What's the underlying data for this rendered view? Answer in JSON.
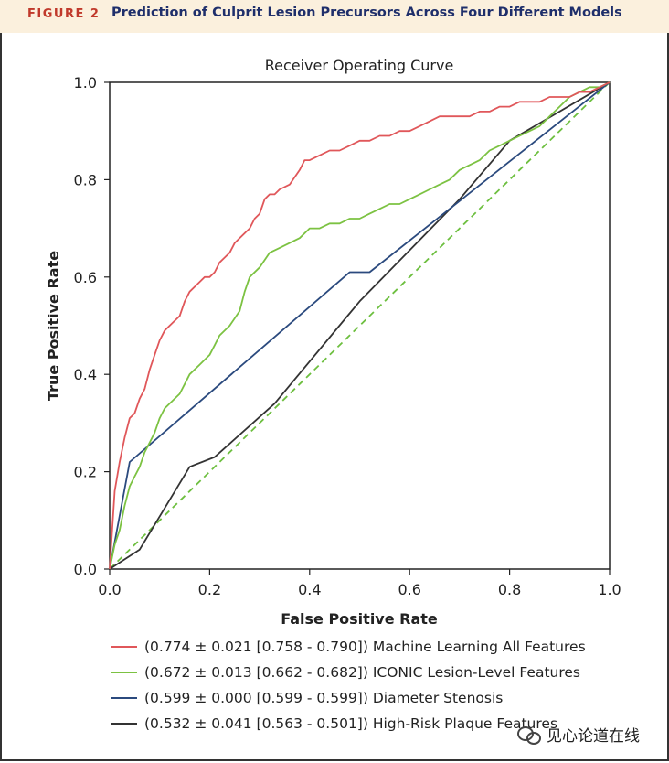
{
  "figure": {
    "label": "FIGURE 2",
    "title": "Prediction of Culprit Lesion Precursors Across Four Different Models",
    "label_color": "#c0392b",
    "title_color": "#1f2f6b"
  },
  "watermark": {
    "text": "见心论道在线",
    "icon": "wechat-icon"
  },
  "chart_data": {
    "type": "line",
    "title": "Receiver Operating Curve",
    "xlabel": "False Positive Rate",
    "ylabel": "True Positive Rate",
    "xlim": [
      0,
      1
    ],
    "ylim": [
      0,
      1
    ],
    "xticks": [
      "0.0",
      "0.2",
      "0.4",
      "0.6",
      "0.8",
      "1.0"
    ],
    "yticks": [
      "0.0",
      "0.2",
      "0.4",
      "0.6",
      "0.8",
      "1.0"
    ],
    "grid": false,
    "legend_position": "bottom",
    "reference_line": {
      "x": [
        0,
        1
      ],
      "y": [
        0,
        1
      ],
      "color": "#6dbf3f",
      "style": "dashed"
    },
    "series": [
      {
        "name": "(0.774 ± 0.021 [0.758 - 0.790]) Machine Learning All Features",
        "color": "#e0575a",
        "x": [
          0,
          0.01,
          0.02,
          0.03,
          0.04,
          0.05,
          0.06,
          0.07,
          0.08,
          0.09,
          0.1,
          0.11,
          0.12,
          0.14,
          0.15,
          0.16,
          0.18,
          0.19,
          0.2,
          0.21,
          0.22,
          0.23,
          0.24,
          0.25,
          0.26,
          0.28,
          0.29,
          0.3,
          0.31,
          0.32,
          0.33,
          0.34,
          0.36,
          0.38,
          0.39,
          0.4,
          0.42,
          0.44,
          0.46,
          0.48,
          0.5,
          0.52,
          0.54,
          0.56,
          0.58,
          0.6,
          0.62,
          0.64,
          0.66,
          0.68,
          0.7,
          0.72,
          0.74,
          0.76,
          0.78,
          0.8,
          0.82,
          0.84,
          0.86,
          0.88,
          0.9,
          0.92,
          0.94,
          0.96,
          0.98,
          1.0
        ],
        "y": [
          0,
          0.16,
          0.22,
          0.27,
          0.31,
          0.32,
          0.35,
          0.37,
          0.41,
          0.44,
          0.47,
          0.49,
          0.5,
          0.52,
          0.55,
          0.57,
          0.59,
          0.6,
          0.6,
          0.61,
          0.63,
          0.64,
          0.65,
          0.67,
          0.68,
          0.7,
          0.72,
          0.73,
          0.76,
          0.77,
          0.77,
          0.78,
          0.79,
          0.82,
          0.84,
          0.84,
          0.85,
          0.86,
          0.86,
          0.87,
          0.88,
          0.88,
          0.89,
          0.89,
          0.9,
          0.9,
          0.91,
          0.92,
          0.93,
          0.93,
          0.93,
          0.93,
          0.94,
          0.94,
          0.95,
          0.95,
          0.96,
          0.96,
          0.96,
          0.97,
          0.97,
          0.97,
          0.98,
          0.98,
          0.99,
          1.0
        ]
      },
      {
        "name": "(0.672 ± 0.013 [0.662 - 0.682]) ICONIC Lesion-Level Features",
        "color": "#7cc242",
        "x": [
          0,
          0.01,
          0.02,
          0.03,
          0.04,
          0.05,
          0.06,
          0.07,
          0.08,
          0.09,
          0.1,
          0.11,
          0.12,
          0.14,
          0.15,
          0.16,
          0.18,
          0.2,
          0.21,
          0.22,
          0.24,
          0.26,
          0.27,
          0.28,
          0.3,
          0.32,
          0.34,
          0.36,
          0.38,
          0.4,
          0.42,
          0.44,
          0.46,
          0.48,
          0.5,
          0.52,
          0.54,
          0.56,
          0.58,
          0.6,
          0.62,
          0.64,
          0.66,
          0.68,
          0.7,
          0.72,
          0.74,
          0.76,
          0.78,
          0.8,
          0.82,
          0.84,
          0.86,
          0.88,
          0.9,
          0.92,
          0.94,
          0.96,
          0.98,
          1.0
        ],
        "y": [
          0,
          0.05,
          0.08,
          0.13,
          0.17,
          0.19,
          0.21,
          0.24,
          0.26,
          0.28,
          0.31,
          0.33,
          0.34,
          0.36,
          0.38,
          0.4,
          0.42,
          0.44,
          0.46,
          0.48,
          0.5,
          0.53,
          0.57,
          0.6,
          0.62,
          0.65,
          0.66,
          0.67,
          0.68,
          0.7,
          0.7,
          0.71,
          0.71,
          0.72,
          0.72,
          0.73,
          0.74,
          0.75,
          0.75,
          0.76,
          0.77,
          0.78,
          0.79,
          0.8,
          0.82,
          0.83,
          0.84,
          0.86,
          0.87,
          0.88,
          0.89,
          0.9,
          0.91,
          0.93,
          0.95,
          0.97,
          0.98,
          0.99,
          0.99,
          1.0
        ]
      },
      {
        "name": "(0.599 ± 0.000 [0.599 - 0.599]) Diameter Stenosis",
        "color": "#2b4a7e",
        "x": [
          0,
          0.04,
          0.48,
          0.52,
          1.0
        ],
        "y": [
          0,
          0.22,
          0.61,
          0.61,
          1.0
        ]
      },
      {
        "name": "(0.532 ± 0.041 [0.563 - 0.501]) High-Risk Plaque Features",
        "color": "#333333",
        "x": [
          0,
          0.06,
          0.16,
          0.21,
          0.33,
          0.5,
          0.7,
          0.8,
          1.0
        ],
        "y": [
          0,
          0.04,
          0.21,
          0.23,
          0.34,
          0.55,
          0.76,
          0.88,
          1.0
        ]
      }
    ]
  }
}
